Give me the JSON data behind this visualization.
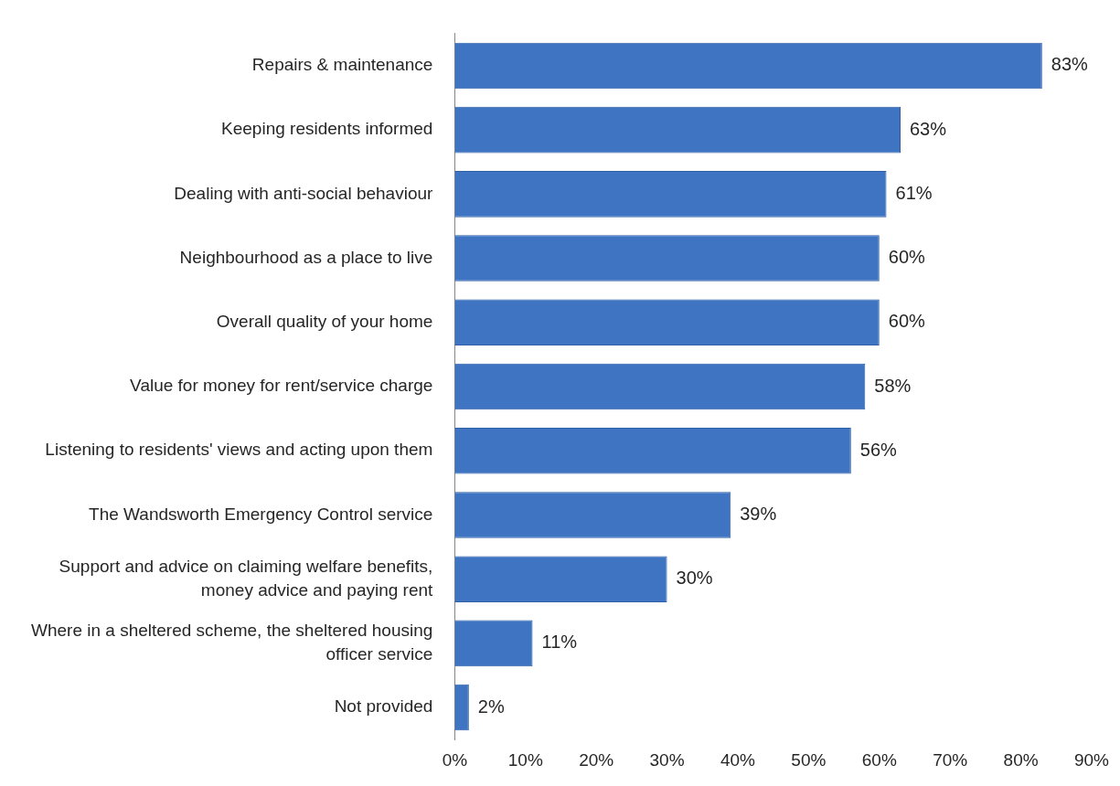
{
  "chart_data": {
    "type": "bar",
    "orientation": "horizontal",
    "categories": [
      "Repairs & maintenance",
      "Keeping residents informed",
      "Dealing with anti-social behaviour",
      "Neighbourhood as a place to live",
      "Overall quality of your home",
      "Value for money for rent/service charge",
      "Listening to residents' views and acting upon them",
      "The Wandsworth Emergency Control service",
      "Support and advice on claiming welfare benefits, money advice and paying rent",
      "Where in a sheltered scheme, the sheltered housing officer service",
      "Not provided"
    ],
    "values": [
      83,
      63,
      61,
      60,
      60,
      58,
      56,
      39,
      30,
      11,
      2
    ],
    "value_labels": [
      "83%",
      "63%",
      "61%",
      "60%",
      "60%",
      "58%",
      "56%",
      "39%",
      "30%",
      "11%",
      "2%"
    ],
    "color": "#3f74c2",
    "xlim": [
      0,
      90
    ],
    "xticks": [
      {
        "value": 0,
        "label": "0%"
      },
      {
        "value": 10,
        "label": "10%"
      },
      {
        "value": 20,
        "label": "20%"
      },
      {
        "value": 30,
        "label": "30%"
      },
      {
        "value": 40,
        "label": "40%"
      },
      {
        "value": 50,
        "label": "50%"
      },
      {
        "value": 60,
        "label": "60%"
      },
      {
        "value": 70,
        "label": "70%"
      },
      {
        "value": 80,
        "label": "80%"
      },
      {
        "value": 90,
        "label": "90%"
      }
    ],
    "grid": false,
    "legend": false
  }
}
